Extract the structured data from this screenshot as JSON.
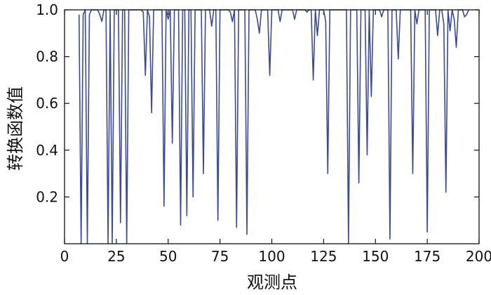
{
  "chart_data": {
    "type": "line",
    "xlabel": "观测点",
    "ylabel": "转换函数值",
    "xlim": [
      0,
      200
    ],
    "ylim": [
      0,
      1.0
    ],
    "xticks": [
      0,
      25,
      50,
      75,
      100,
      125,
      150,
      175,
      200
    ],
    "yticks": [
      0.2,
      0.4,
      0.6,
      0.8,
      1.0
    ],
    "ytick_labels": [
      "0.2",
      "0.4",
      "0.6",
      "0.8",
      "1.0"
    ],
    "grid": false,
    "line_color": "#3a4a9a",
    "series": [
      {
        "x": [
          7,
          8,
          9,
          10,
          11,
          12,
          13,
          14,
          15,
          16,
          17,
          18,
          19,
          20,
          21,
          22,
          23,
          24,
          25,
          26,
          27,
          28,
          29,
          30,
          31,
          32,
          33,
          34,
          35,
          36,
          37,
          38,
          39,
          40,
          41,
          42,
          43,
          44,
          45,
          46,
          47,
          48,
          49,
          50,
          51,
          52,
          53,
          54,
          55,
          56,
          57,
          58,
          59,
          60,
          61,
          62,
          63,
          64,
          65,
          66,
          67,
          68,
          69,
          70,
          71,
          72,
          73,
          74,
          75,
          76,
          77,
          78,
          79,
          80,
          81,
          82,
          83,
          84,
          85,
          86,
          87,
          88,
          89,
          90,
          91,
          92,
          93,
          94,
          95,
          96,
          97,
          98,
          99,
          100,
          101,
          102,
          103,
          104,
          105,
          106,
          107,
          108,
          109,
          110,
          111,
          112,
          113,
          114,
          115,
          116,
          117,
          118,
          119,
          120,
          121,
          122,
          123,
          124,
          125,
          126,
          127,
          128,
          129,
          130,
          131,
          132,
          133,
          134,
          135,
          136,
          137,
          138,
          139,
          140,
          141,
          142,
          143,
          144,
          145,
          146,
          147,
          148,
          149,
          150,
          151,
          152,
          153,
          154,
          155,
          156,
          157,
          158,
          159,
          160,
          161,
          162,
          163,
          164,
          165,
          166,
          167,
          168,
          169,
          170,
          171,
          172,
          173,
          174,
          175,
          176,
          177,
          178,
          179,
          180,
          181,
          182,
          183,
          184,
          185,
          186,
          187,
          188,
          189,
          190,
          191,
          192,
          193,
          194,
          195
        ],
        "y": [
          0.98,
          0.0,
          0.98,
          1.0,
          0.0,
          0.98,
          1.0,
          1.0,
          1.0,
          1.0,
          0.98,
          0.95,
          1.0,
          1.0,
          0.0,
          1.0,
          0.0,
          1.0,
          1.0,
          1.0,
          0.09,
          1.0,
          1.0,
          0.0,
          1.0,
          1.0,
          1.0,
          1.0,
          1.0,
          1.0,
          1.0,
          0.99,
          0.72,
          1.0,
          0.97,
          0.56,
          1.0,
          1.0,
          1.0,
          1.0,
          1.0,
          0.16,
          1.0,
          0.96,
          1.0,
          0.43,
          1.0,
          1.0,
          1.0,
          0.08,
          1.0,
          1.0,
          0.12,
          1.0,
          1.0,
          0.2,
          1.0,
          1.0,
          1.0,
          1.0,
          0.3,
          1.0,
          1.0,
          1.0,
          0.93,
          1.0,
          1.0,
          0.1,
          1.0,
          1.0,
          1.0,
          1.0,
          1.0,
          0.99,
          0.95,
          1.0,
          0.07,
          1.0,
          1.0,
          1.0,
          1.0,
          0.04,
          1.0,
          1.0,
          1.0,
          1.0,
          0.96,
          0.9,
          1.0,
          1.0,
          1.0,
          1.0,
          0.72,
          1.0,
          1.0,
          1.0,
          1.0,
          0.95,
          1.0,
          1.0,
          1.0,
          1.0,
          1.0,
          1.0,
          0.96,
          1.0,
          1.0,
          1.0,
          1.0,
          1.0,
          0.99,
          1.0,
          1.0,
          0.7,
          1.0,
          0.89,
          1.0,
          1.0,
          1.0,
          0.95,
          0.3,
          1.0,
          1.0,
          1.0,
          1.0,
          1.0,
          1.0,
          1.0,
          1.0,
          1.0,
          0.0,
          1.0,
          1.0,
          1.0,
          1.0,
          0.26,
          1.0,
          1.0,
          1.0,
          0.38,
          1.0,
          0.63,
          1.0,
          1.0,
          1.0,
          1.0,
          0.97,
          1.0,
          1.0,
          1.0,
          0.02,
          1.0,
          1.0,
          1.0,
          0.79,
          1.0,
          1.0,
          1.0,
          1.0,
          1.0,
          1.0,
          0.3,
          1.0,
          0.94,
          1.0,
          1.0,
          1.0,
          1.0,
          0.05,
          1.0,
          1.0,
          1.0,
          1.0,
          0.89,
          1.0,
          1.0,
          0.94,
          0.22,
          1.0,
          0.91,
          1.0,
          0.96,
          0.84,
          1.0,
          1.0,
          1.0,
          0.97,
          0.98,
          1.0
        ]
      }
    ]
  }
}
